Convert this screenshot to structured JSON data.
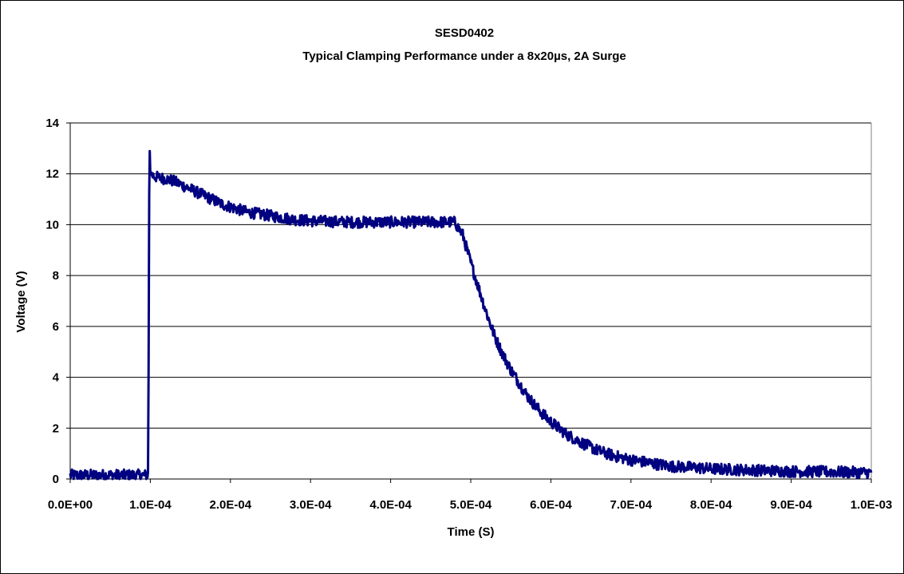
{
  "chart_data": {
    "type": "line",
    "title": "SESD0402",
    "subtitle": "Typical Clamping Performance under a 8x20µs, 2A Surge",
    "xlabel": "Time (S)",
    "ylabel": "Voltage (V)",
    "xlim": [
      0,
      0.001
    ],
    "ylim": [
      0,
      14
    ],
    "x_ticks": [
      0,
      0.0001,
      0.0002,
      0.0003,
      0.0004,
      0.0005,
      0.0006,
      0.0007,
      0.0008,
      0.0009,
      0.001
    ],
    "x_tick_labels": [
      "0.0E+00",
      "1.0E-04",
      "2.0E-04",
      "3.0E-04",
      "4.0E-04",
      "5.0E-04",
      "6.0E-04",
      "7.0E-04",
      "8.0E-04",
      "9.0E-04",
      "1.0E-03"
    ],
    "y_ticks": [
      0,
      2,
      4,
      6,
      8,
      10,
      12,
      14
    ],
    "y_tick_labels": [
      "0",
      "2",
      "4",
      "6",
      "8",
      "10",
      "12",
      "14"
    ],
    "grid": "horizontal",
    "legend": "none",
    "series_color": "#000080",
    "series": [
      {
        "x": [
          0,
          5e-05,
          9.6e-05,
          9.75e-05,
          9.85e-05,
          9.92e-05,
          0.0001,
          0.000105,
          0.00011,
          0.00012,
          0.00013,
          0.00014,
          0.00015,
          0.00016,
          0.00017,
          0.00018,
          0.00019,
          0.0002,
          0.00021,
          0.00022,
          0.00023,
          0.00024,
          0.00025,
          0.00026,
          0.00028,
          0.0003,
          0.00035,
          0.0004,
          0.00045,
          0.00047,
          0.00048,
          0.00049,
          0.0005,
          0.00051,
          0.00052,
          0.00053,
          0.00054,
          0.00055,
          0.00056,
          0.00057,
          0.00058,
          0.00059,
          0.0006,
          0.00062,
          0.00064,
          0.00066,
          0.00068,
          0.0007,
          0.00072,
          0.00075,
          0.00078,
          0.0008,
          0.00085,
          0.0009,
          0.00095,
          0.001
        ],
        "y": [
          0.15,
          0.15,
          0.15,
          0.3,
          11.0,
          13.0,
          12.0,
          11.9,
          11.85,
          11.8,
          11.7,
          11.55,
          11.4,
          11.25,
          11.1,
          10.95,
          10.8,
          10.7,
          10.6,
          10.5,
          10.45,
          10.4,
          10.35,
          10.3,
          10.2,
          10.15,
          10.1,
          10.1,
          10.1,
          10.1,
          10.1,
          9.6,
          8.5,
          7.5,
          6.5,
          5.6,
          4.9,
          4.3,
          3.8,
          3.3,
          2.9,
          2.55,
          2.25,
          1.75,
          1.4,
          1.1,
          0.9,
          0.75,
          0.65,
          0.5,
          0.45,
          0.4,
          0.35,
          0.3,
          0.28,
          0.25
        ]
      }
    ]
  }
}
